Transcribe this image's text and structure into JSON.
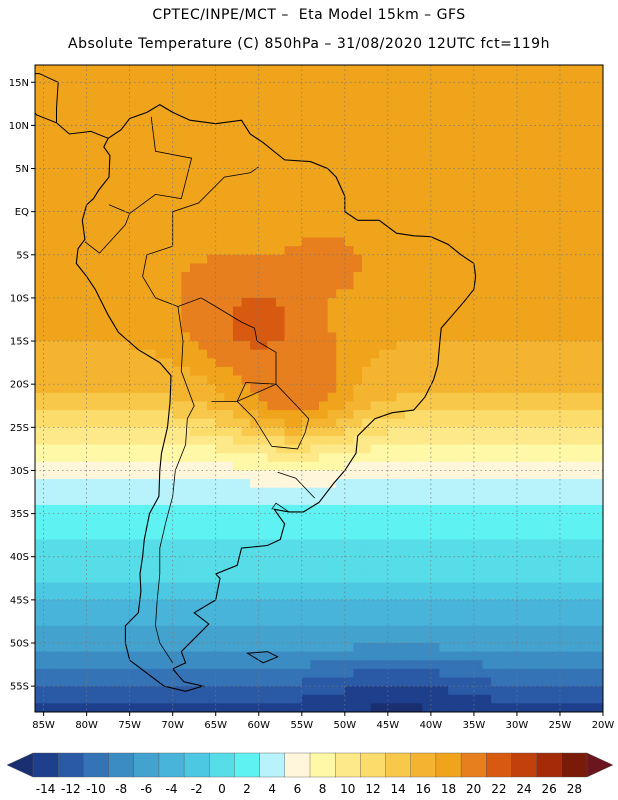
{
  "header": {
    "line1": "CPTEC/INPE/MCT –  Eta Model 15km – GFS",
    "line2": "Absolute Temperature (C) 850hPa – 31/08/2020 12UTC fct=119h"
  },
  "map": {
    "lat_range": [
      -58,
      17
    ],
    "lon_range": [
      -86,
      -20
    ],
    "lat_ticks": [
      {
        "value": 15,
        "label": "15N"
      },
      {
        "value": 10,
        "label": "10N"
      },
      {
        "value": 5,
        "label": "5N"
      },
      {
        "value": 0,
        "label": "EQ"
      },
      {
        "value": -5,
        "label": "5S"
      },
      {
        "value": -10,
        "label": "10S"
      },
      {
        "value": -15,
        "label": "15S"
      },
      {
        "value": -20,
        "label": "20S"
      },
      {
        "value": -25,
        "label": "25S"
      },
      {
        "value": -30,
        "label": "30S"
      },
      {
        "value": -35,
        "label": "35S"
      },
      {
        "value": -40,
        "label": "40S"
      },
      {
        "value": -45,
        "label": "45S"
      },
      {
        "value": -50,
        "label": "50S"
      },
      {
        "value": -55,
        "label": "55S"
      }
    ],
    "lon_ticks": [
      {
        "value": -85,
        "label": "85W"
      },
      {
        "value": -80,
        "label": "80W"
      },
      {
        "value": -75,
        "label": "75W"
      },
      {
        "value": -70,
        "label": "70W"
      },
      {
        "value": -65,
        "label": "65W"
      },
      {
        "value": -60,
        "label": "60W"
      },
      {
        "value": -55,
        "label": "55W"
      },
      {
        "value": -50,
        "label": "50W"
      },
      {
        "value": -45,
        "label": "45W"
      },
      {
        "value": -40,
        "label": "40W"
      },
      {
        "value": -35,
        "label": "35W"
      },
      {
        "value": -30,
        "label": "30W"
      },
      {
        "value": -25,
        "label": "25W"
      },
      {
        "value": -20,
        "label": "20W"
      }
    ]
  },
  "colorbar": {
    "labels": [
      "-14",
      "-12",
      "-10",
      "-8",
      "-6",
      "-4",
      "-2",
      "0",
      "2",
      "4",
      "6",
      "8",
      "10",
      "12",
      "14",
      "16",
      "18",
      "20",
      "22",
      "24",
      "26",
      "28"
    ],
    "colors": [
      "#1e3f8c",
      "#2a5aa5",
      "#3473b5",
      "#3c8cc4",
      "#44a2cf",
      "#48b4da",
      "#4dc8e2",
      "#56dde8",
      "#5ff2f2",
      "#b8f2fa",
      "#fff6dc",
      "#fff8a6",
      "#fde98a",
      "#fcdc6a",
      "#f8c84a",
      "#f4b430",
      "#f0a41c",
      "#e87f1e",
      "#d85a10",
      "#c2400c",
      "#a52a08",
      "#7a1a08"
    ],
    "under_color": "#1a2f70",
    "over_color": "#6a1520"
  },
  "field": {
    "bands": [
      {
        "lat": 17,
        "temp": 19
      },
      {
        "lat": 5,
        "temp": 18.6
      },
      {
        "lat": -5,
        "temp": 18.4
      },
      {
        "lat": -15,
        "temp": 18.0
      },
      {
        "lat": -22,
        "temp": 15.5
      },
      {
        "lat": -27,
        "temp": 10
      },
      {
        "lat": -30,
        "temp": 7
      },
      {
        "lat": -33,
        "temp": 4.5
      },
      {
        "lat": -37,
        "temp": 2.5
      },
      {
        "lat": -42,
        "temp": 0.5
      },
      {
        "lat": -46,
        "temp": -2.5
      },
      {
        "lat": -50,
        "temp": -5
      },
      {
        "lat": -54,
        "temp": -9
      },
      {
        "lat": -58,
        "temp": -13
      }
    ],
    "hot_spots": [
      {
        "lon": -60,
        "lat": -13,
        "temp": 23
      },
      {
        "lon": -56,
        "lat": -20,
        "temp": 22
      },
      {
        "lon": -64,
        "lat": -10,
        "temp": 21
      },
      {
        "lon": -52,
        "lat": -6,
        "temp": 20.5
      },
      {
        "lon": -65,
        "lat": 5,
        "temp": 20
      }
    ]
  }
}
